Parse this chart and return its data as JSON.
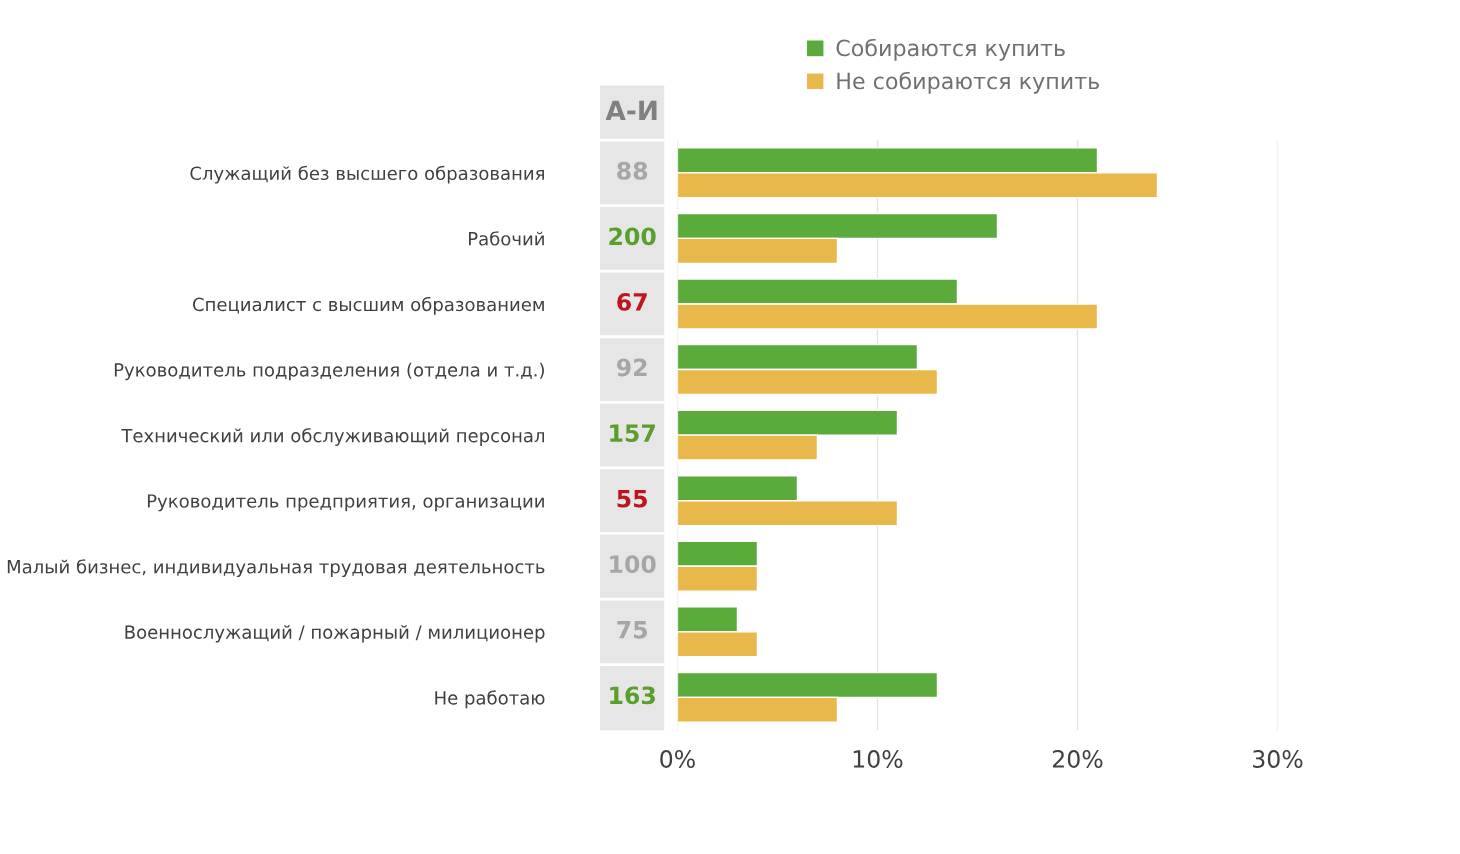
{
  "chart_data": [
    {
      "type": "bar",
      "orientation": "horizontal",
      "categories": [
        "Служащий без высшего образования",
        "Рабочий",
        "Специалист с высшим образованием",
        "Руководитель подразделения (отдела и т.д.)",
        "Технический или обслуживающий персонал",
        "Руководитель предприятия, организации",
        "Малый бизнес, индивидуальная трудовая деятельность",
        "Военнослужащий / пожарный / милиционер",
        "Не работаю"
      ],
      "series": [
        {
          "name": "Собираются купить",
          "color": "#5aaa3c",
          "values": [
            21,
            16,
            14,
            12,
            11,
            6,
            4,
            3,
            13
          ]
        },
        {
          "name": "Не собираются купить",
          "color": "#e8b94a",
          "values": [
            24,
            8,
            21,
            13,
            7,
            11,
            4,
            4,
            8
          ]
        }
      ],
      "xlim": [
        0,
        30
      ],
      "xticks": [
        {
          "value": 0,
          "label": "0%"
        },
        {
          "value": 10,
          "label": "10%"
        },
        {
          "value": 20,
          "label": "20%"
        },
        {
          "value": 30,
          "label": "30%"
        }
      ],
      "grid": "x",
      "legend": "top"
    },
    {
      "type": "other",
      "title": "А-И",
      "annotations": [
        "88",
        "200",
        "67",
        "92",
        "157",
        "55",
        "100",
        "75",
        "163"
      ],
      "colors": [
        "#a6a6a6",
        "#5a9e2e",
        "#c0141c",
        "#a6a6a6",
        "#5a9e2e",
        "#c0141c",
        "#a6a6a6",
        "#a6a6a6",
        "#5a9e2e"
      ]
    }
  ]
}
